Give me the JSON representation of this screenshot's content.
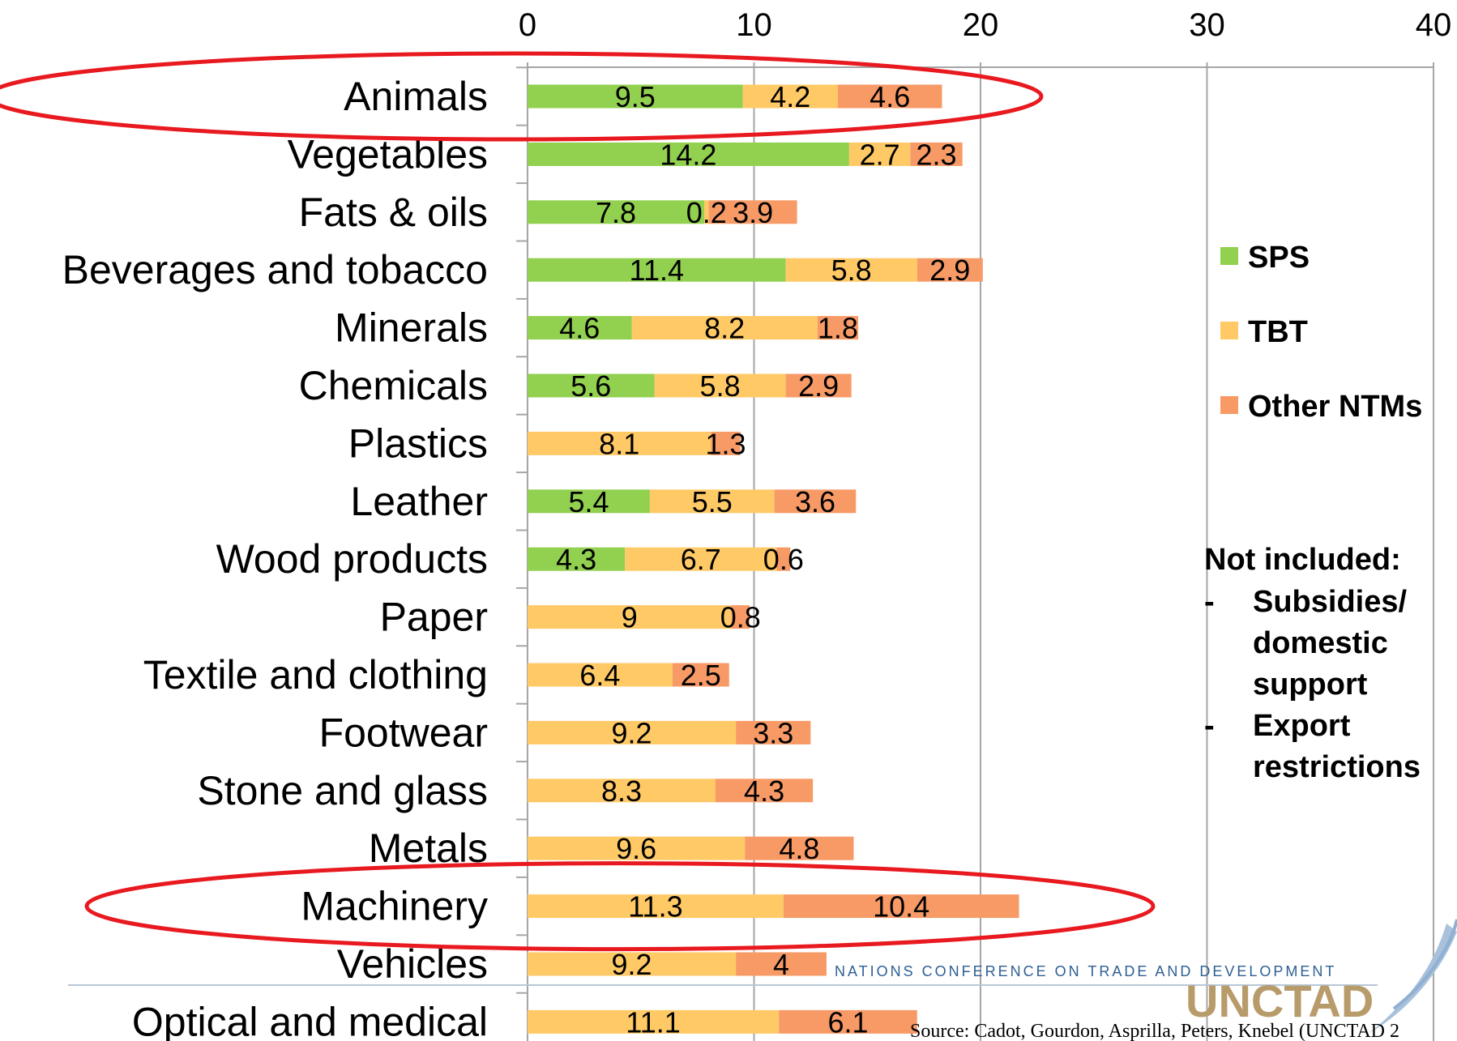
{
  "chart_data": {
    "type": "bar",
    "orientation": "horizontal",
    "stacked": true,
    "categories": [
      "Animals",
      "Vegetables",
      "Fats & oils",
      "Beverages and tobacco",
      "Minerals",
      "Chemicals",
      "Plastics",
      "Leather",
      "Wood products",
      "Paper",
      "Textile and clothing",
      "Footwear",
      "Stone and glass",
      "Metals",
      "Machinery",
      "Vehicles",
      "Optical and medical"
    ],
    "series": [
      {
        "name": "SPS",
        "color": "#92d050",
        "values": [
          9.5,
          14.2,
          7.8,
          11.4,
          4.6,
          5.6,
          0,
          5.4,
          4.3,
          0,
          0,
          0,
          0,
          0,
          0,
          0,
          0
        ]
      },
      {
        "name": "TBT",
        "color": "#ffc966",
        "values": [
          4.2,
          2.7,
          0.2,
          5.8,
          8.2,
          5.8,
          8.1,
          5.5,
          6.7,
          9,
          6.4,
          9.2,
          8.3,
          9.6,
          11.3,
          9.2,
          11.1
        ]
      },
      {
        "name": "Other NTMs",
        "color": "#f79a66",
        "values": [
          4.6,
          2.3,
          3.9,
          2.9,
          1.8,
          2.9,
          1.3,
          3.6,
          0.6,
          0.8,
          2.5,
          3.3,
          4.3,
          4.8,
          10.4,
          4,
          6.1
        ]
      }
    ],
    "xlim": [
      0,
      40
    ],
    "xticks": [
      "0",
      "10",
      "20",
      "30",
      "40"
    ],
    "grid": "vertical",
    "legend": "right",
    "highlighted_categories": [
      "Animals",
      "Machinery"
    ],
    "highlight_color": "#e8191f"
  },
  "note": {
    "title": "Not included:",
    "items": [
      {
        "bullet": "-",
        "lines": [
          "Subsidies/",
          "domestic",
          "support"
        ]
      },
      {
        "bullet": "-",
        "lines": [
          "Export",
          "restrictions"
        ]
      }
    ]
  },
  "source": "Source: Cadot, Gourdon, Asprilla, Peters, Knebel (UNCTAD 2",
  "logo": {
    "band_text": "NATIONS CONFERENCE ON TRADE AND DEVELOPMENT",
    "wordmark": "UNCTAD"
  }
}
